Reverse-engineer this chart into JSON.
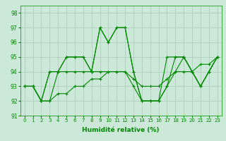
{
  "xlabel": "Humidité relative (%)",
  "bg_color": "#cce8d8",
  "grid_color": "#aaccb8",
  "line_color": "#008800",
  "ylim": [
    91,
    98.5
  ],
  "xlim": [
    -0.5,
    23.5
  ],
  "yticks": [
    91,
    92,
    93,
    94,
    95,
    96,
    97,
    98
  ],
  "xticks": [
    0,
    1,
    2,
    3,
    4,
    5,
    6,
    7,
    8,
    9,
    10,
    11,
    12,
    13,
    14,
    15,
    16,
    17,
    18,
    19,
    20,
    21,
    22,
    23
  ],
  "series": [
    [
      93,
      93,
      92,
      94,
      94,
      95,
      95,
      95,
      94,
      97,
      96,
      97,
      97,
      94,
      92,
      92,
      92,
      93,
      95,
      95,
      94,
      93,
      94,
      95
    ],
    [
      93,
      93,
      92,
      94,
      94,
      95,
      95,
      95,
      94,
      97,
      96,
      97,
      97,
      94,
      92,
      92,
      92,
      95,
      95,
      95,
      94,
      93,
      94,
      95
    ],
    [
      93,
      93,
      92,
      92,
      94,
      94,
      94,
      94,
      94,
      94,
      94,
      94,
      94,
      93,
      92,
      92,
      92,
      93,
      94,
      95,
      94,
      93,
      94,
      95
    ],
    [
      93,
      93,
      92,
      92,
      92.5,
      92.5,
      93,
      93,
      93.5,
      93.5,
      94,
      94,
      94,
      93.5,
      93,
      93,
      93,
      93.5,
      94,
      94,
      94,
      94.5,
      94.5,
      95
    ]
  ]
}
